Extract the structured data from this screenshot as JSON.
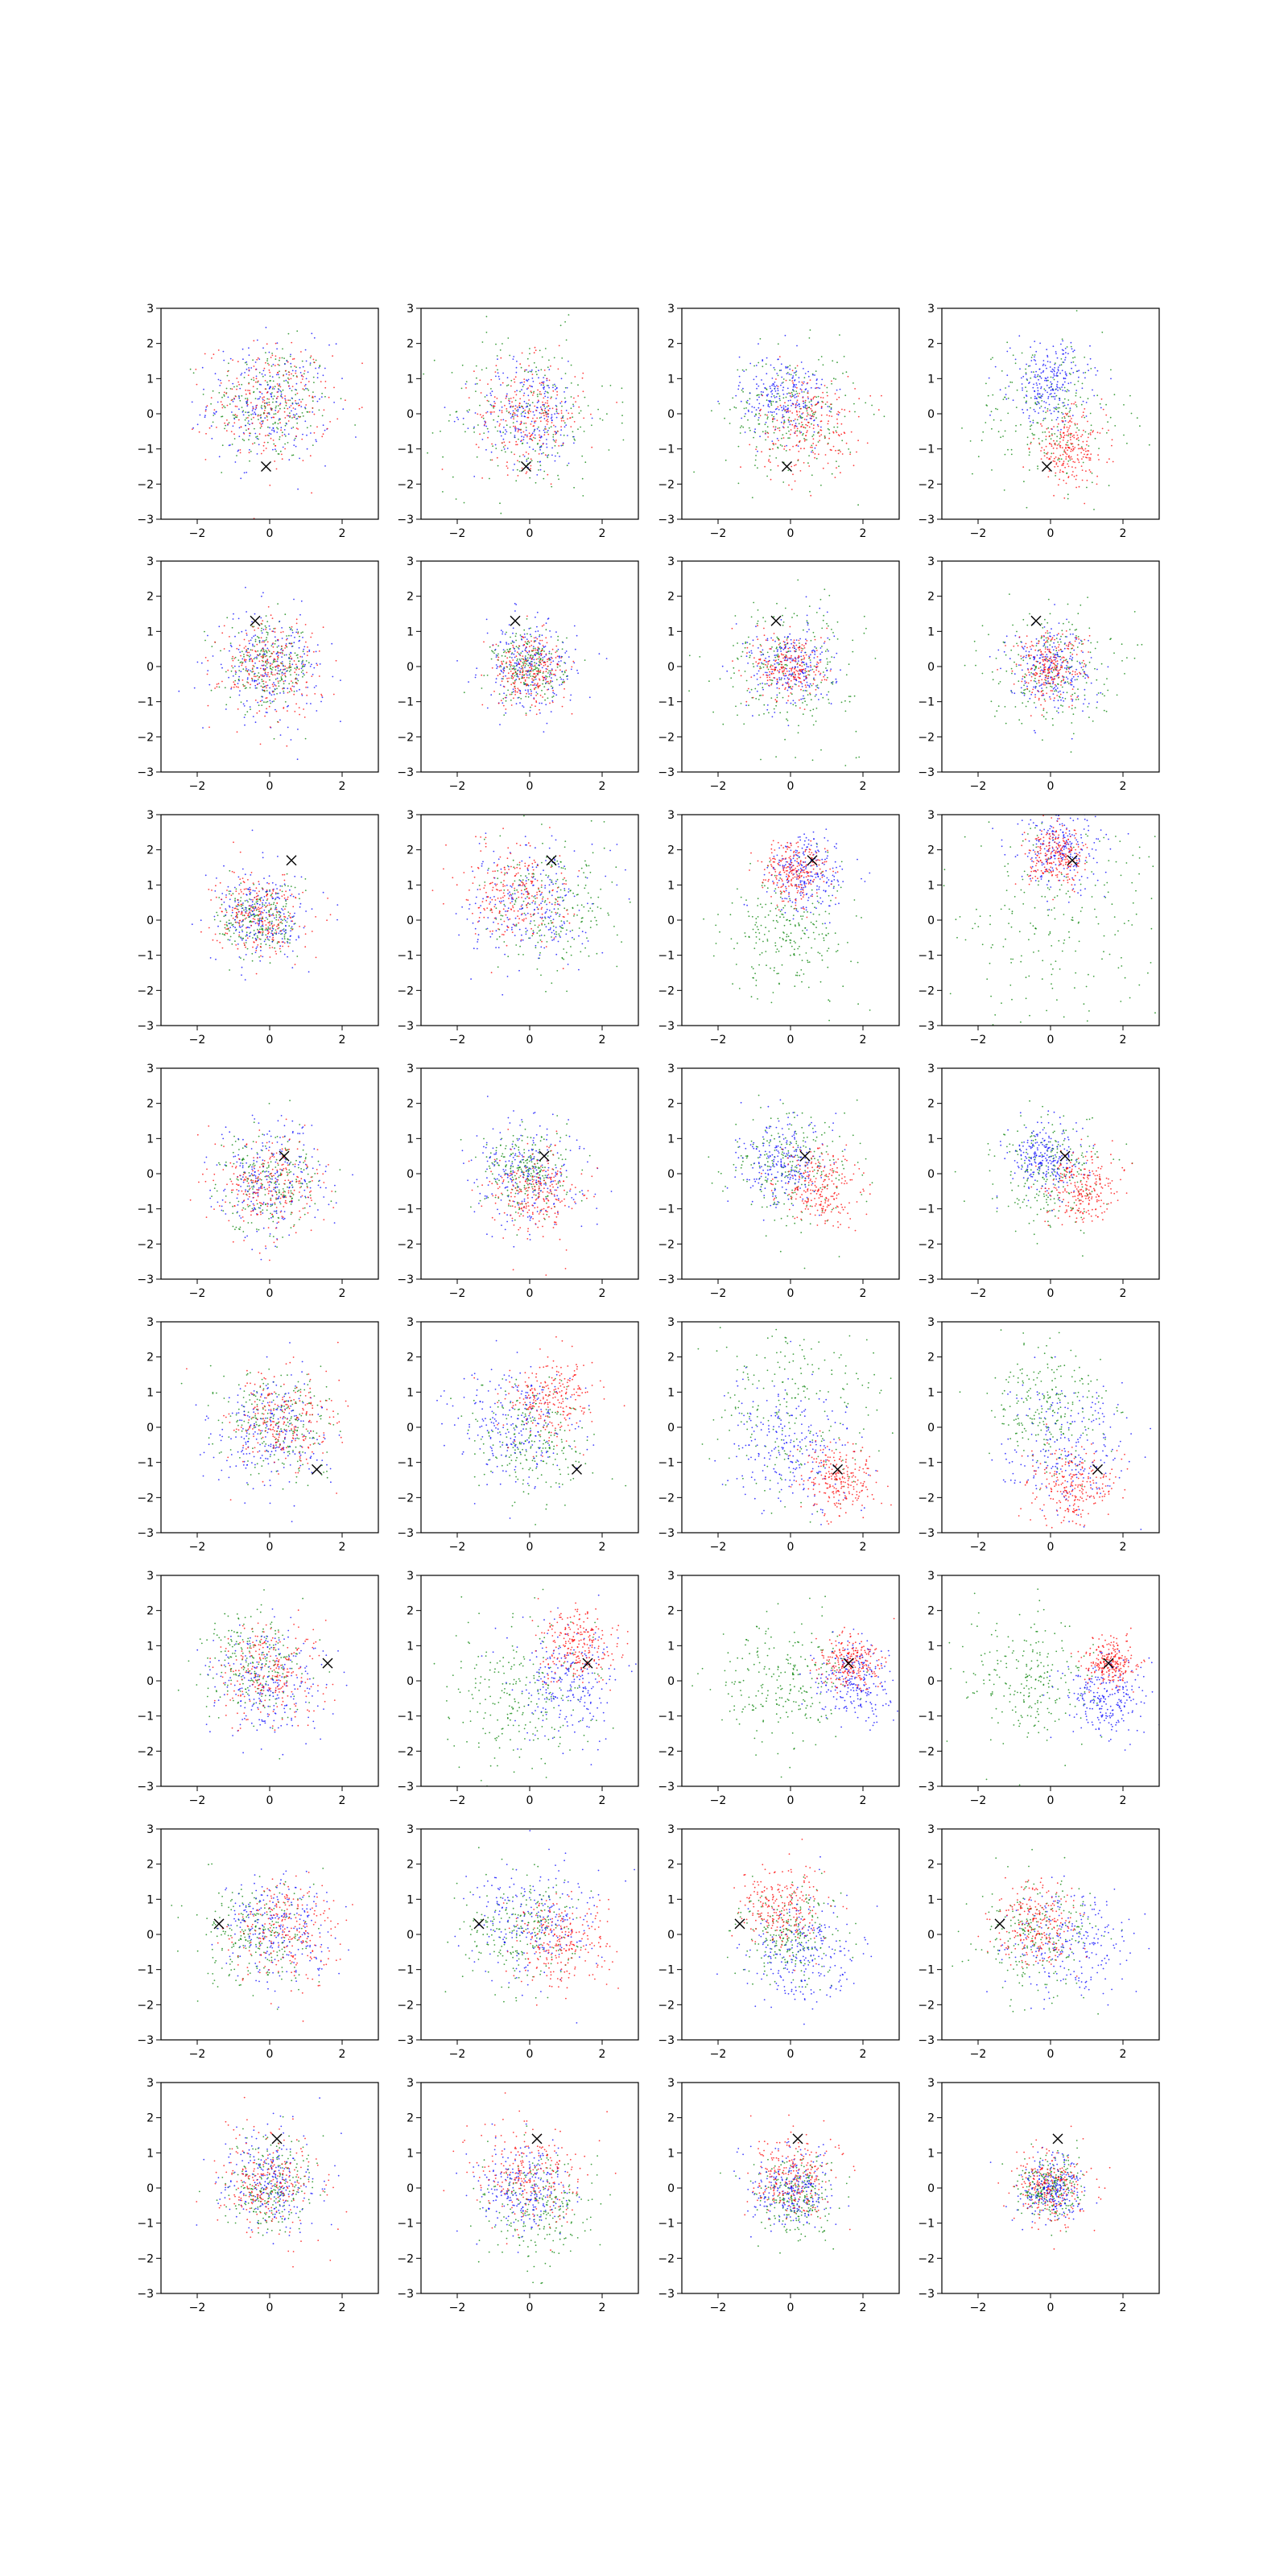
{
  "figure": {
    "rows": 8,
    "cols": 4,
    "panel_count": 32
  },
  "chart_data": {
    "type": "scatter",
    "xlim": [
      -3,
      3
    ],
    "ylim": [
      -3,
      3
    ],
    "xticks": [
      -2,
      0,
      2
    ],
    "yticks": [
      -3,
      -2,
      -1,
      0,
      1,
      2,
      3
    ],
    "xtick_labels": [
      "−2",
      "0",
      "2"
    ],
    "ytick_labels": [
      "−3",
      "−2",
      "−1",
      "0",
      "1",
      "2",
      "3"
    ],
    "grid": false,
    "legend": "none",
    "series_colors": {
      "red": "#ff0000",
      "green": "#008000",
      "blue": "#0000ff"
    },
    "marker": {
      "symbol": "x",
      "color": "#000000"
    },
    "rows": [
      {
        "marker": [
          -0.1,
          -1.5
        ],
        "panels": [
          {
            "red": [
              0,
              0.3,
              0.85
            ],
            "green": [
              0,
              0.3,
              0.85
            ],
            "blue": [
              0,
              0.3,
              0.85
            ]
          },
          {
            "red": [
              0,
              0,
              0.75
            ],
            "green": [
              0,
              0,
              1.15
            ],
            "blue": [
              0,
              0,
              0.75
            ]
          },
          {
            "red": [
              0.5,
              -0.3,
              0.7
            ],
            "green": [
              0,
              0,
              0.9
            ],
            "blue": [
              -0.2,
              0.5,
              0.6
            ]
          },
          {
            "red": [
              0.5,
              -1.0,
              0.5
            ],
            "green": [
              0,
              0,
              1.05
            ],
            "blue": [
              0,
              0.9,
              0.55
            ]
          }
        ]
      },
      {
        "marker": [
          -0.4,
          1.3
        ],
        "panels": [
          {
            "red": [
              0,
              0,
              0.7
            ],
            "green": [
              0,
              0,
              0.6
            ],
            "blue": [
              0,
              0,
              0.75
            ]
          },
          {
            "red": [
              0,
              -0.1,
              0.5
            ],
            "green": [
              0,
              0,
              0.5
            ],
            "blue": [
              0,
              0,
              0.65
            ]
          },
          {
            "red": [
              0,
              0,
              0.5
            ],
            "green": [
              0,
              0,
              0.95
            ],
            "blue": [
              0,
              0,
              0.6
            ]
          },
          {
            "red": [
              0,
              0,
              0.5
            ],
            "green": [
              0,
              0,
              0.85
            ],
            "blue": [
              0,
              0,
              0.6
            ]
          }
        ]
      },
      {
        "marker": [
          0.6,
          1.7
        ],
        "panels": [
          {
            "red": [
              -0.3,
              0.2,
              0.6
            ],
            "green": [
              -0.3,
              0,
              0.55
            ],
            "blue": [
              -0.2,
              0.1,
              0.65
            ]
          },
          {
            "red": [
              -0.4,
              0.8,
              0.7
            ],
            "green": [
              0.6,
              0.3,
              0.9
            ],
            "blue": [
              0,
              0.5,
              0.85
            ]
          },
          {
            "red": [
              0.1,
              1.4,
              0.45
            ],
            "green": [
              0,
              -0.3,
              0.9
            ],
            "blue": [
              0.5,
              1.3,
              0.55
            ]
          },
          {
            "red": [
              0.2,
              1.8,
              0.4
            ],
            "green": [
              0,
              0,
              1.7
            ],
            "blue": [
              0.3,
              2.0,
              0.6
            ]
          }
        ]
      },
      {
        "marker": [
          0.4,
          0.5
        ],
        "panels": [
          {
            "red": [
              0,
              -0.3,
              0.7
            ],
            "green": [
              0,
              -0.2,
              0.7
            ],
            "blue": [
              0,
              -0.2,
              0.8
            ]
          },
          {
            "red": [
              0.2,
              -0.5,
              0.6
            ],
            "green": [
              -0.1,
              0.1,
              0.6
            ],
            "blue": [
              0,
              0,
              0.75
            ]
          },
          {
            "red": [
              0.8,
              -0.4,
              0.55
            ],
            "green": [
              0,
              0.2,
              0.85
            ],
            "blue": [
              -0.2,
              0.3,
              0.6
            ]
          },
          {
            "red": [
              0.9,
              -0.4,
              0.5
            ],
            "green": [
              0,
              0,
              0.75
            ],
            "blue": [
              -0.2,
              0.4,
              0.5
            ]
          }
        ]
      },
      {
        "marker": [
          1.3,
          -1.2
        ],
        "panels": [
          {
            "red": [
              0.3,
              0.1,
              0.75
            ],
            "green": [
              0.3,
              0.2,
              0.75
            ],
            "blue": [
              0,
              -0.2,
              0.8
            ]
          },
          {
            "red": [
              0.6,
              0.8,
              0.6
            ],
            "green": [
              0,
              -0.4,
              0.85
            ],
            "blue": [
              -0.3,
              0,
              0.85
            ]
          },
          {
            "red": [
              1.4,
              -1.5,
              0.5
            ],
            "green": [
              0,
              0.6,
              1.4
            ],
            "blue": [
              0,
              -0.6,
              0.9
            ]
          },
          {
            "red": [
              0.6,
              -1.7,
              0.55
            ],
            "green": [
              0,
              0.6,
              0.85
            ],
            "blue": [
              0.4,
              -0.6,
              0.85
            ]
          }
        ]
      },
      {
        "marker": [
          1.6,
          0.5
        ],
        "panels": [
          {
            "red": [
              0,
              0.2,
              0.75
            ],
            "green": [
              -0.5,
              0.5,
              0.75
            ],
            "blue": [
              0,
              0,
              0.8
            ]
          },
          {
            "red": [
              1.3,
              1.0,
              0.5
            ],
            "green": [
              -0.2,
              -0.4,
              1.0
            ],
            "blue": [
              1.1,
              0,
              0.8
            ]
          },
          {
            "red": [
              1.6,
              0.5,
              0.4
            ],
            "green": [
              -0.3,
              0,
              0.95
            ],
            "blue": [
              1.8,
              0,
              0.55
            ]
          },
          {
            "red": [
              1.6,
              0.5,
              0.35
            ],
            "green": [
              -0.6,
              0,
              0.95
            ],
            "blue": [
              1.5,
              -0.4,
              0.55
            ]
          }
        ]
      },
      {
        "marker": [
          -1.4,
          0.3
        ],
        "panels": [
          {
            "red": [
              0.4,
              0,
              0.7
            ],
            "green": [
              -0.4,
              0,
              0.75
            ],
            "blue": [
              0.3,
              0.1,
              0.8
            ]
          },
          {
            "red": [
              0.8,
              -0.3,
              0.65
            ],
            "green": [
              -0.3,
              0.1,
              0.8
            ],
            "blue": [
              0.1,
              0.3,
              0.85
            ]
          },
          {
            "red": [
              -0.3,
              0.8,
              0.6
            ],
            "green": [
              0,
              0,
              0.7
            ],
            "blue": [
              0.4,
              -0.6,
              0.75
            ]
          },
          {
            "red": [
              -0.4,
              0.3,
              0.6
            ],
            "green": [
              -0.3,
              0,
              0.8
            ],
            "blue": [
              0.5,
              -0.3,
              0.75
            ]
          }
        ]
      },
      {
        "marker": [
          0.2,
          1.4
        ],
        "panels": [
          {
            "red": [
              0,
              0.1,
              0.75
            ],
            "green": [
              0,
              0.1,
              0.65
            ],
            "blue": [
              0,
              0.2,
              0.7
            ]
          },
          {
            "red": [
              0,
              0.3,
              0.75
            ],
            "green": [
              0.2,
              -0.5,
              0.75
            ],
            "blue": [
              -0.2,
              0,
              0.6
            ]
          },
          {
            "red": [
              0,
              0.3,
              0.6
            ],
            "green": [
              0.2,
              -0.2,
              0.55
            ],
            "blue": [
              0,
              0,
              0.55
            ]
          },
          {
            "red": [
              0,
              0,
              0.5
            ],
            "green": [
              0,
              0,
              0.45
            ],
            "blue": [
              0,
              0,
              0.45
            ]
          }
        ]
      }
    ]
  }
}
